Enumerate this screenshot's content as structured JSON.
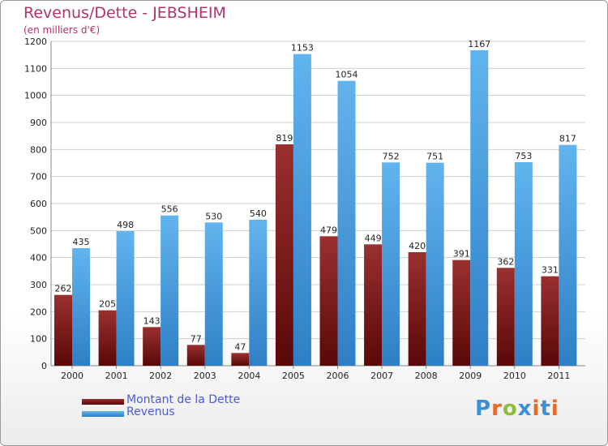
{
  "title": "Revenus/Dette - JEBSHEIM",
  "subtitle": "(en milliers d'€)",
  "logo_text": "Proxiti",
  "colors": {
    "debt": "#7a1a1a",
    "revenue": "#55a8e8",
    "title": "#b0336a",
    "legend_text": "#4a5ad8"
  },
  "chart_data": {
    "type": "bar",
    "title": "Revenus/Dette - JEBSHEIM",
    "subtitle": "(en milliers d'€)",
    "categories": [
      "2000",
      "2001",
      "2002",
      "2003",
      "2004",
      "2005",
      "2006",
      "2007",
      "2008",
      "2009",
      "2010",
      "2011"
    ],
    "series": [
      {
        "name": "Montant de la Dette",
        "values": [
          262,
          205,
          143,
          77,
          47,
          819,
          479,
          449,
          420,
          391,
          362,
          331
        ]
      },
      {
        "name": "Revenus",
        "values": [
          435,
          498,
          556,
          530,
          540,
          1153,
          1054,
          752,
          751,
          1167,
          753,
          817
        ]
      }
    ],
    "ylim": [
      0,
      1200
    ],
    "yticks": [
      0,
      100,
      200,
      300,
      400,
      500,
      600,
      700,
      800,
      900,
      1000,
      1100,
      1200
    ],
    "grid": true,
    "legend_position": "bottom-left"
  }
}
